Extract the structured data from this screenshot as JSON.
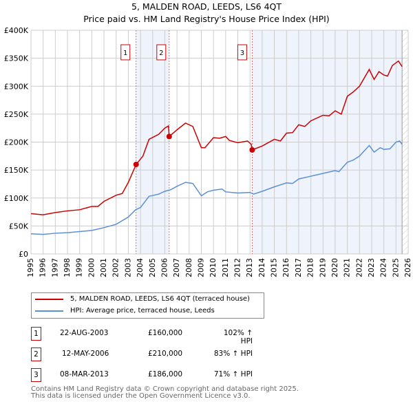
{
  "chart_data": {
    "type": "line",
    "title": "5, MALDEN ROAD, LEEDS, LS6 4QT",
    "subtitle": "Price paid vs. HM Land Registry's House Price Index (HPI)",
    "xlim": [
      1995,
      2026
    ],
    "ylim": [
      0,
      400000
    ],
    "yticks": [
      0,
      50000,
      100000,
      150000,
      200000,
      250000,
      300000,
      350000,
      400000
    ],
    "ytick_labels": [
      "£0",
      "£50K",
      "£100K",
      "£150K",
      "£200K",
      "£250K",
      "£300K",
      "£350K",
      "£400K"
    ],
    "xticks": [
      1995,
      1996,
      1997,
      1998,
      1999,
      2000,
      2001,
      2002,
      2003,
      2004,
      2005,
      2006,
      2007,
      2008,
      2009,
      2010,
      2011,
      2012,
      2013,
      2014,
      2015,
      2016,
      2017,
      2018,
      2019,
      2020,
      2021,
      2022,
      2023,
      2024,
      2025,
      2026
    ],
    "grid": true,
    "series": [
      {
        "name": "5, MALDEN ROAD, LEEDS, LS6 4QT (terraced house)",
        "color": "#cc0000",
        "x": [
          1995,
          1996,
          1997,
          1998,
          1999,
          2000,
          2000.5,
          2001,
          2002,
          2002.5,
          2003,
          2003.64,
          2004.2,
          2004.7,
          2005.5,
          2006,
          2006.3,
          2006.36,
          2007,
          2007.7,
          2008.3,
          2009,
          2009.3,
          2010,
          2010.5,
          2011,
          2011.3,
          2012,
          2012.8,
          2013.1,
          2013.18,
          2014,
          2015,
          2015.5,
          2016,
          2016.5,
          2017,
          2017.5,
          2018,
          2019,
          2019.5,
          2020,
          2020.5,
          2021,
          2021.5,
          2022,
          2022.8,
          2023.2,
          2023.6,
          2024,
          2024.3,
          2024.7,
          2025.2,
          2025.5
        ],
        "y": [
          72,
          70,
          74,
          77,
          79,
          85,
          85,
          94,
          105,
          108,
          128,
          160,
          175,
          205,
          214,
          225,
          229,
          210,
          222,
          234,
          228,
          190,
          190,
          208,
          207,
          210,
          203,
          199,
          202,
          196,
          186,
          193,
          205,
          202,
          216,
          217,
          231,
          228,
          238,
          248,
          247,
          256,
          250,
          282,
          290,
          300,
          330,
          312,
          326,
          320,
          318,
          337,
          345,
          335
        ]
      },
      {
        "name": "HPI: Average price, terraced house, Leeds",
        "color": "#5b8fd4",
        "x": [
          1995,
          1996,
          1997,
          1998,
          1999,
          2000,
          2001,
          2002,
          2003,
          2003.6,
          2004,
          2004.7,
          2005.5,
          2006,
          2006.5,
          2007,
          2007.7,
          2008.3,
          2009,
          2009.5,
          2010,
          2010.7,
          2011,
          2012,
          2013,
          2013.3,
          2014,
          2015,
          2016,
          2016.5,
          2017,
          2018,
          2019,
          2020,
          2020.3,
          2021,
          2021.5,
          2022,
          2022.8,
          2023.2,
          2023.7,
          2024,
          2024.5,
          2025,
          2025.3,
          2025.5
        ],
        "y": [
          36,
          35,
          37,
          38,
          40,
          42,
          47,
          53,
          66,
          79,
          83,
          103,
          107,
          112,
          115,
          121,
          128,
          126,
          104,
          111,
          114,
          116,
          111,
          109,
          110,
          107,
          112,
          120,
          127,
          126,
          134,
          139,
          144,
          149,
          147,
          164,
          168,
          175,
          194,
          182,
          190,
          187,
          188,
          200,
          202,
          196
        ]
      }
    ],
    "y_units": 1000,
    "shaded_ranges": [
      [
        2003.64,
        2006.36
      ],
      [
        2013.18,
        2025.5
      ]
    ],
    "hatched_from": 2025.5,
    "sales": [
      {
        "n": "1",
        "x": 2003.64,
        "price": 160,
        "date": "22-AUG-2003",
        "price_label": "£160,000",
        "hpi": "102% ↑ HPI"
      },
      {
        "n": "2",
        "x": 2006.36,
        "price": 210,
        "date": "12-MAY-2006",
        "price_label": "£210,000",
        "hpi": "83% ↑ HPI"
      },
      {
        "n": "3",
        "x": 2013.18,
        "price": 186,
        "date": "08-MAR-2013",
        "price_label": "£186,000",
        "hpi": "71% ↑ HPI"
      }
    ]
  },
  "footer": {
    "line1": "Contains HM Land Registry data © Crown copyright and database right 2025.",
    "line2": "This data is licensed under the Open Government Licence v3.0."
  }
}
